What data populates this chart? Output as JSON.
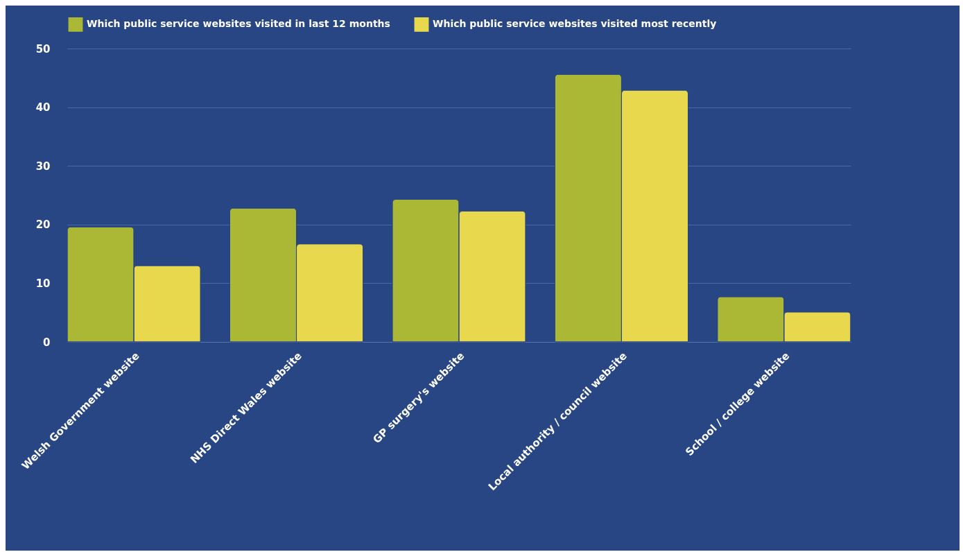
{
  "chart_data": {
    "type": "bar",
    "categories": [
      "Welsh Government website",
      "NHS Direct Wales website",
      "GP surgery's website",
      "Local authority / council website",
      "School / college website"
    ],
    "series": [
      {
        "name": "Which public service websites visited in last 12 months",
        "color": "#aab835",
        "values": [
          19.6,
          22.8,
          24.3,
          45.6,
          7.7
        ]
      },
      {
        "name": "Which public service websites visited most recently",
        "color": "#e8d84d",
        "values": [
          13.0,
          16.7,
          22.3,
          42.9,
          5.1
        ]
      }
    ],
    "ylim": [
      0,
      50
    ],
    "yticks": [
      0,
      10,
      20,
      30,
      40,
      50
    ],
    "grid": "y",
    "legend": "top"
  }
}
